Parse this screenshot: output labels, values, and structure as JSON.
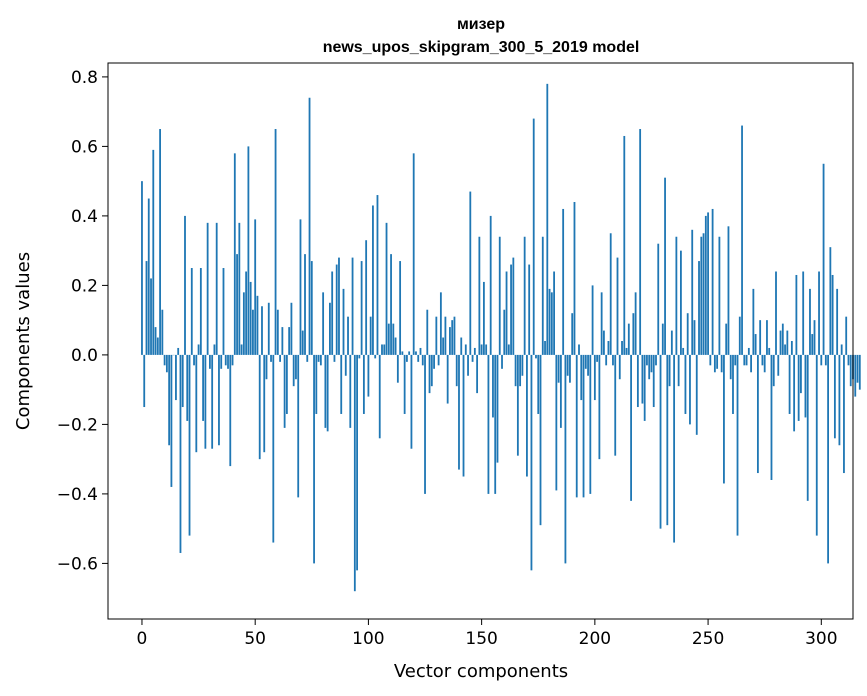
{
  "chart_data": {
    "type": "bar",
    "title_line1": "мизер",
    "title_line2": "news_upos_skipgram_300_5_2019 model",
    "xlabel": "Vector components",
    "ylabel": "Components values",
    "xlim": [
      -15,
      314
    ],
    "ylim": [
      -0.76,
      0.84
    ],
    "xticks": [
      0,
      50,
      100,
      150,
      200,
      250,
      300
    ],
    "xtick_labels": [
      "0",
      "50",
      "100",
      "150",
      "200",
      "250",
      "300"
    ],
    "yticks": [
      -0.6,
      -0.4,
      -0.2,
      0.0,
      0.2,
      0.4,
      0.6,
      0.8
    ],
    "ytick_labels": [
      "−0.6",
      "−0.4",
      "−0.2",
      "0.0",
      "0.2",
      "0.4",
      "0.6",
      "0.8"
    ],
    "bar_color": "#1f77b4",
    "values": [
      0.5,
      -0.15,
      0.27,
      0.45,
      0.22,
      0.59,
      0.08,
      0.05,
      0.65,
      0.13,
      -0.03,
      -0.05,
      -0.26,
      -0.38,
      0.0,
      -0.13,
      0.02,
      -0.57,
      -0.15,
      0.4,
      -0.19,
      -0.52,
      0.25,
      -0.03,
      -0.28,
      0.03,
      0.25,
      -0.19,
      -0.27,
      0.38,
      -0.04,
      -0.27,
      0.03,
      0.38,
      -0.26,
      -0.04,
      0.25,
      -0.03,
      -0.04,
      -0.32,
      -0.03,
      0.58,
      0.29,
      0.38,
      0.03,
      0.18,
      0.24,
      0.6,
      0.21,
      0.13,
      0.39,
      0.17,
      -0.3,
      0.14,
      -0.28,
      -0.07,
      0.15,
      -0.02,
      -0.54,
      0.65,
      0.13,
      -0.02,
      0.08,
      -0.21,
      -0.17,
      0.08,
      0.15,
      -0.09,
      -0.07,
      -0.41,
      0.39,
      0.07,
      0.29,
      -0.02,
      0.74,
      0.27,
      -0.6,
      -0.17,
      -0.02,
      -0.03,
      0.18,
      -0.21,
      -0.22,
      0.15,
      0.24,
      -0.02,
      0.26,
      0.28,
      -0.17,
      0.19,
      -0.06,
      0.11,
      -0.21,
      0.28,
      -0.68,
      -0.62,
      -0.01,
      0.27,
      -0.17,
      0.33,
      -0.12,
      0.11,
      0.43,
      -0.01,
      0.46,
      -0.24,
      0.03,
      0.03,
      0.38,
      0.09,
      0.29,
      0.09,
      0.05,
      -0.08,
      0.27,
      0.01,
      -0.17,
      -0.02,
      0.01,
      -0.27,
      0.58,
      0.01,
      -0.02,
      0.02,
      -0.03,
      -0.4,
      0.13,
      -0.11,
      -0.09,
      -0.04,
      0.11,
      -0.03,
      0.18,
      0.05,
      0.11,
      -0.14,
      0.08,
      0.1,
      0.11,
      -0.09,
      -0.33,
      0.05,
      -0.35,
      0.03,
      -0.06,
      0.47,
      -0.02,
      0.02,
      -0.11,
      0.34,
      0.03,
      0.21,
      0.03,
      -0.4,
      0.4,
      -0.18,
      -0.4,
      -0.31,
      0.34,
      -0.04,
      0.13,
      0.24,
      0.03,
      0.26,
      0.28,
      -0.09,
      -0.29,
      -0.09,
      -0.06,
      0.34,
      -0.35,
      0.26,
      -0.62,
      0.68,
      -0.01,
      -0.17,
      -0.49,
      0.34,
      0.04,
      0.78,
      0.19,
      0.18,
      0.24,
      -0.39,
      -0.08,
      -0.21,
      0.42,
      -0.6,
      -0.06,
      -0.08,
      0.12,
      0.44,
      -0.41,
      0.03,
      -0.13,
      -0.41,
      -0.04,
      -0.06,
      -0.4,
      0.2,
      -0.13,
      -0.02,
      -0.3,
      0.18,
      0.07,
      -0.03,
      0.04,
      0.35,
      -0.03,
      -0.29,
      0.28,
      -0.07,
      0.04,
      0.63,
      0.02,
      0.09,
      -0.42,
      0.12,
      0.18,
      -0.15,
      0.65,
      -0.14,
      -0.19,
      -0.03,
      -0.07,
      -0.05,
      -0.15,
      -0.03,
      0.32,
      -0.5,
      0.09,
      0.51,
      -0.49,
      -0.09,
      0.07,
      -0.54,
      0.34,
      -0.09,
      0.3,
      0.02,
      -0.17,
      0.12,
      -0.2,
      0.36,
      0.1,
      -0.23,
      0.27,
      0.34,
      0.35,
      0.4,
      0.41,
      -0.03,
      0.42,
      -0.05,
      -0.04,
      0.34,
      -0.05,
      -0.37,
      0.09,
      0.37,
      -0.07,
      -0.17,
      -0.03,
      -0.52,
      0.11,
      0.66,
      -0.03,
      -0.03,
      0.02,
      -0.05,
      0.19,
      0.06,
      -0.34,
      0.1,
      -0.03,
      -0.05,
      0.1,
      0.02,
      -0.36,
      -0.09,
      0.24,
      -0.06,
      0.07,
      0.09,
      0.03,
      0.07,
      -0.17,
      0.04,
      -0.22,
      0.23,
      -0.19,
      -0.11,
      0.24,
      -0.18,
      -0.42,
      0.19,
      0.06,
      0.1,
      -0.52,
      0.24,
      -0.03,
      0.55,
      -0.03,
      -0.6,
      0.31,
      0.23,
      -0.24,
      0.19,
      -0.26,
      0.03,
      -0.34,
      0.11,
      -0.03,
      -0.09,
      -0.07,
      -0.12,
      -0.08,
      -0.1
    ]
  }
}
